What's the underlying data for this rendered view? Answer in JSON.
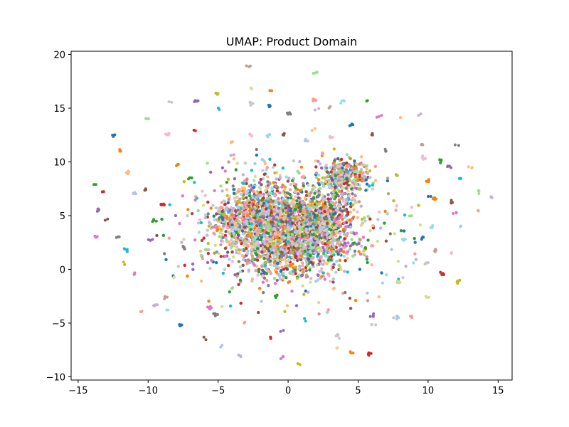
{
  "chart_data": {
    "type": "scatter",
    "title": "UMAP: Product Domain",
    "xlabel": "",
    "ylabel": "",
    "xlim": [
      -15.5,
      16
    ],
    "ylim": [
      -10.3,
      20.3
    ],
    "xticks": [
      -15,
      -10,
      -5,
      0,
      5,
      10,
      15
    ],
    "yticks": [
      -10,
      -5,
      0,
      5,
      10,
      15,
      20
    ],
    "xtick_labels": [
      "−15",
      "−10",
      "−5",
      "0",
      "5",
      "10",
      "15"
    ],
    "ytick_labels": [
      "−10",
      "−5",
      "0",
      "5",
      "10",
      "15",
      "20"
    ],
    "grid": false,
    "legend": "none",
    "palette": [
      "#1f77b4",
      "#ff7f0e",
      "#2ca02c",
      "#d62728",
      "#9467bd",
      "#8c564b",
      "#e377c2",
      "#7f7f7f",
      "#bcbd22",
      "#17becf",
      "#aec7e8",
      "#ffbb78",
      "#98df8a",
      "#ff9896",
      "#c5b0d5",
      "#c49c94",
      "#f7b6d2",
      "#c7c7c7",
      "#dbdb8d",
      "#9edae5"
    ],
    "clusters": [
      {
        "x": 0.0,
        "y": 4.0,
        "sx": 2.3,
        "sy": 1.9,
        "n": 1800
      },
      {
        "x": -2.2,
        "y": 5.2,
        "sx": 1.2,
        "sy": 1.6,
        "n": 300
      },
      {
        "x": 1.8,
        "y": 2.2,
        "sx": 1.4,
        "sy": 1.1,
        "n": 300
      },
      {
        "x": 4.0,
        "y": 8.5,
        "sx": 0.8,
        "sy": 0.9,
        "n": 350
      },
      {
        "x": -4.2,
        "y": 4.6,
        "sx": 0.7,
        "sy": 0.8,
        "n": 140
      },
      {
        "x": 2.6,
        "y": 5.3,
        "sx": 1.0,
        "sy": 0.8,
        "n": 180
      },
      {
        "x": -1.5,
        "y": 1.0,
        "sx": 1.2,
        "sy": 0.9,
        "n": 160
      }
    ],
    "outliers": [
      {
        "x": -12.5,
        "y": 12.5
      },
      {
        "x": -12.0,
        "y": 11.0
      },
      {
        "x": -13.8,
        "y": 8.0
      },
      {
        "x": -13.2,
        "y": 7.2
      },
      {
        "x": -13.6,
        "y": 5.5
      },
      {
        "x": -13.0,
        "y": 4.7
      },
      {
        "x": -13.7,
        "y": 3.0
      },
      {
        "x": -12.2,
        "y": 3.0
      },
      {
        "x": -11.8,
        "y": 0.5
      },
      {
        "x": -11.5,
        "y": 1.8
      },
      {
        "x": -11.0,
        "y": 7.0
      },
      {
        "x": -11.5,
        "y": 9.0
      },
      {
        "x": -10.0,
        "y": 14.0
      },
      {
        "x": -10.5,
        "y": -4.0
      },
      {
        "x": -9.5,
        "y": -3.3
      },
      {
        "x": -8.7,
        "y": -2.6
      },
      {
        "x": -8.5,
        "y": 12.6
      },
      {
        "x": -8.4,
        "y": 15.6
      },
      {
        "x": -8.2,
        "y": -0.7
      },
      {
        "x": -8.6,
        "y": -3.8
      },
      {
        "x": -7.8,
        "y": -5.2
      },
      {
        "x": -7.9,
        "y": 9.8
      },
      {
        "x": -7.0,
        "y": 8.5
      },
      {
        "x": -6.6,
        "y": 13.0
      },
      {
        "x": -6.5,
        "y": 15.7
      },
      {
        "x": -6.0,
        "y": -6.3
      },
      {
        "x": -5.6,
        "y": -3.6
      },
      {
        "x": -5.2,
        "y": -4.2
      },
      {
        "x": -5.1,
        "y": 16.3
      },
      {
        "x": -5.0,
        "y": 14.9
      },
      {
        "x": -4.8,
        "y": -7.2
      },
      {
        "x": -4.0,
        "y": 11.8
      },
      {
        "x": -3.9,
        "y": -1.8
      },
      {
        "x": -3.1,
        "y": -4.9
      },
      {
        "x": -3.4,
        "y": -8.0
      },
      {
        "x": -2.8,
        "y": 18.9
      },
      {
        "x": -2.6,
        "y": 12.5
      },
      {
        "x": -2.6,
        "y": 15.5
      },
      {
        "x": -2.7,
        "y": 16.9
      },
      {
        "x": -1.4,
        "y": 12.5
      },
      {
        "x": -1.3,
        "y": 15.2
      },
      {
        "x": -1.2,
        "y": 16.7
      },
      {
        "x": -0.9,
        "y": -2.5
      },
      {
        "x": -1.2,
        "y": -6.4
      },
      {
        "x": -0.5,
        "y": -5.7
      },
      {
        "x": -0.3,
        "y": 12.6
      },
      {
        "x": -0.4,
        "y": -8.2
      },
      {
        "x": 0.1,
        "y": 14.5
      },
      {
        "x": 0.7,
        "y": -8.8
      },
      {
        "x": 1.2,
        "y": -4.6
      },
      {
        "x": 1.3,
        "y": 12.0
      },
      {
        "x": 1.8,
        "y": 13.0
      },
      {
        "x": 1.9,
        "y": 18.3
      },
      {
        "x": 1.9,
        "y": 15.8
      },
      {
        "x": 2.0,
        "y": 14.9
      },
      {
        "x": 2.8,
        "y": 15.0
      },
      {
        "x": 3.0,
        "y": 12.3
      },
      {
        "x": 3.5,
        "y": -6.2
      },
      {
        "x": 3.5,
        "y": -7.3
      },
      {
        "x": 3.9,
        "y": 15.7
      },
      {
        "x": 4.5,
        "y": 13.4
      },
      {
        "x": 4.5,
        "y": -7.7
      },
      {
        "x": 5.7,
        "y": 15.7
      },
      {
        "x": 5.8,
        "y": -7.9
      },
      {
        "x": 6.0,
        "y": -4.3
      },
      {
        "x": 6.1,
        "y": 12.5
      },
      {
        "x": 6.6,
        "y": 14.3
      },
      {
        "x": 6.9,
        "y": 11.1
      },
      {
        "x": 7.7,
        "y": 8.8
      },
      {
        "x": 7.8,
        "y": -1.0
      },
      {
        "x": 7.7,
        "y": -4.5
      },
      {
        "x": 8.0,
        "y": 14.2
      },
      {
        "x": 8.8,
        "y": 5.0
      },
      {
        "x": 8.8,
        "y": -4.4
      },
      {
        "x": 9.4,
        "y": 14.4
      },
      {
        "x": 9.5,
        "y": 11.6
      },
      {
        "x": 9.7,
        "y": 10.4
      },
      {
        "x": 9.8,
        "y": 0.6
      },
      {
        "x": 10.0,
        "y": -2.6
      },
      {
        "x": 10.2,
        "y": 3.9
      },
      {
        "x": 10.2,
        "y": 6.8
      },
      {
        "x": 10.5,
        "y": 6.6
      },
      {
        "x": 10.9,
        "y": 10.0
      },
      {
        "x": 11.0,
        "y": -0.4
      },
      {
        "x": 11.5,
        "y": 9.6
      },
      {
        "x": 11.6,
        "y": 6.3
      },
      {
        "x": 11.9,
        "y": 5.3
      },
      {
        "x": 12.0,
        "y": 11.6
      },
      {
        "x": 12.1,
        "y": -1.1
      },
      {
        "x": 12.3,
        "y": 8.4
      },
      {
        "x": 12.4,
        "y": 4.0
      },
      {
        "x": 13.1,
        "y": 9.4
      },
      {
        "x": 13.6,
        "y": 7.3
      },
      {
        "x": 13.6,
        "y": 5.4
      },
      {
        "x": 14.5,
        "y": 6.7
      },
      {
        "x": 10.5,
        "y": 1.7
      },
      {
        "x": 11.7,
        "y": 1.6
      },
      {
        "x": 6.1,
        "y": -5.1
      },
      {
        "x": 7.9,
        "y": -1.1
      },
      {
        "x": 8.3,
        "y": 2.8
      },
      {
        "x": 9.6,
        "y": 3.0
      },
      {
        "x": 10.0,
        "y": 8.2
      },
      {
        "x": -9.6,
        "y": 4.5
      },
      {
        "x": -9.0,
        "y": 6.0
      },
      {
        "x": -9.8,
        "y": 2.7
      },
      {
        "x": -10.2,
        "y": 7.4
      },
      {
        "x": -10.9,
        "y": -0.4
      },
      {
        "x": -7.5,
        "y": 2.1
      }
    ]
  }
}
